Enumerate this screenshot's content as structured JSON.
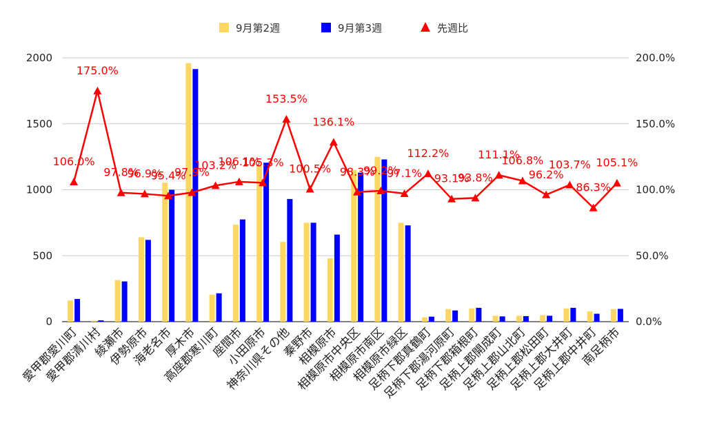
{
  "chart_data": {
    "type": "bar",
    "categories": [
      "愛甲郡愛川町",
      "愛甲郡清川村",
      "綾瀬市",
      "伊勢原市",
      "海老名市",
      "厚木市",
      "高座郡寒川町",
      "座間市",
      "小田原市",
      "神奈川県その他",
      "秦野市",
      "相模原市",
      "相模原市中央区",
      "相模原市南区",
      "相模原市緑区",
      "足柄下郡真鶴町",
      "足柄下郡湯河原町",
      "足柄下郡箱根町",
      "足柄上郡開成町",
      "足柄上郡山北町",
      "足柄上郡松田町",
      "足柄上郡大井町",
      "足柄上郡中井町",
      "南足柄市"
    ],
    "series": [
      {
        "name": "9月第2週",
        "color": "#fdd663",
        "type": "bar",
        "axis": "left",
        "values": [
          160,
          8,
          315,
          640,
          1055,
          1960,
          205,
          735,
          1180,
          605,
          750,
          480,
          1150,
          1250,
          750,
          33,
          95,
          100,
          45,
          45,
          50,
          100,
          78,
          95
        ]
      },
      {
        "name": "9月第3週",
        "color": "#0000ff",
        "type": "bar",
        "axis": "left",
        "values": [
          172,
          10,
          305,
          620,
          1000,
          1915,
          215,
          775,
          1205,
          930,
          750,
          660,
          1130,
          1230,
          730,
          38,
          85,
          105,
          40,
          42,
          45,
          105,
          60,
          97
        ]
      },
      {
        "name": "先週比",
        "color": "#ff0000",
        "type": "line",
        "axis": "right",
        "marker": "triangle",
        "values": [
          106.0,
          175.0,
          97.8,
          96.9,
          95.4,
          97.9,
          103.2,
          106.1,
          105.3,
          153.5,
          100.5,
          136.1,
          98.3,
          99.2,
          97.1,
          112.2,
          93.1,
          93.8,
          111.1,
          106.8,
          96.2,
          103.7,
          86.3,
          105.1
        ],
        "labels": [
          "106.0%",
          "175.0%",
          "97.8%",
          "96.9%",
          "95.4%",
          "97.9%",
          "103.2%",
          "106.1%",
          "105.3%",
          "153.5%",
          "100.5%",
          "136.1%",
          "98.3%",
          "99.2%",
          "97.1%",
          "112.2%",
          "93.1%",
          "93.8%",
          "111.1%",
          "106.8%",
          "96.2%",
          "103.7%",
          "86.3%",
          "105.1%"
        ]
      }
    ],
    "y_left": {
      "min": 0,
      "max": 2000,
      "ticks": [
        "0",
        "500",
        "1000",
        "1500",
        "2000"
      ]
    },
    "y_right": {
      "min": 0,
      "max": 200,
      "ticks": [
        "0.0%",
        "50.0%",
        "100.0%",
        "150.0%",
        "200.0%"
      ]
    },
    "legend_position": "top-center",
    "grid": true
  }
}
